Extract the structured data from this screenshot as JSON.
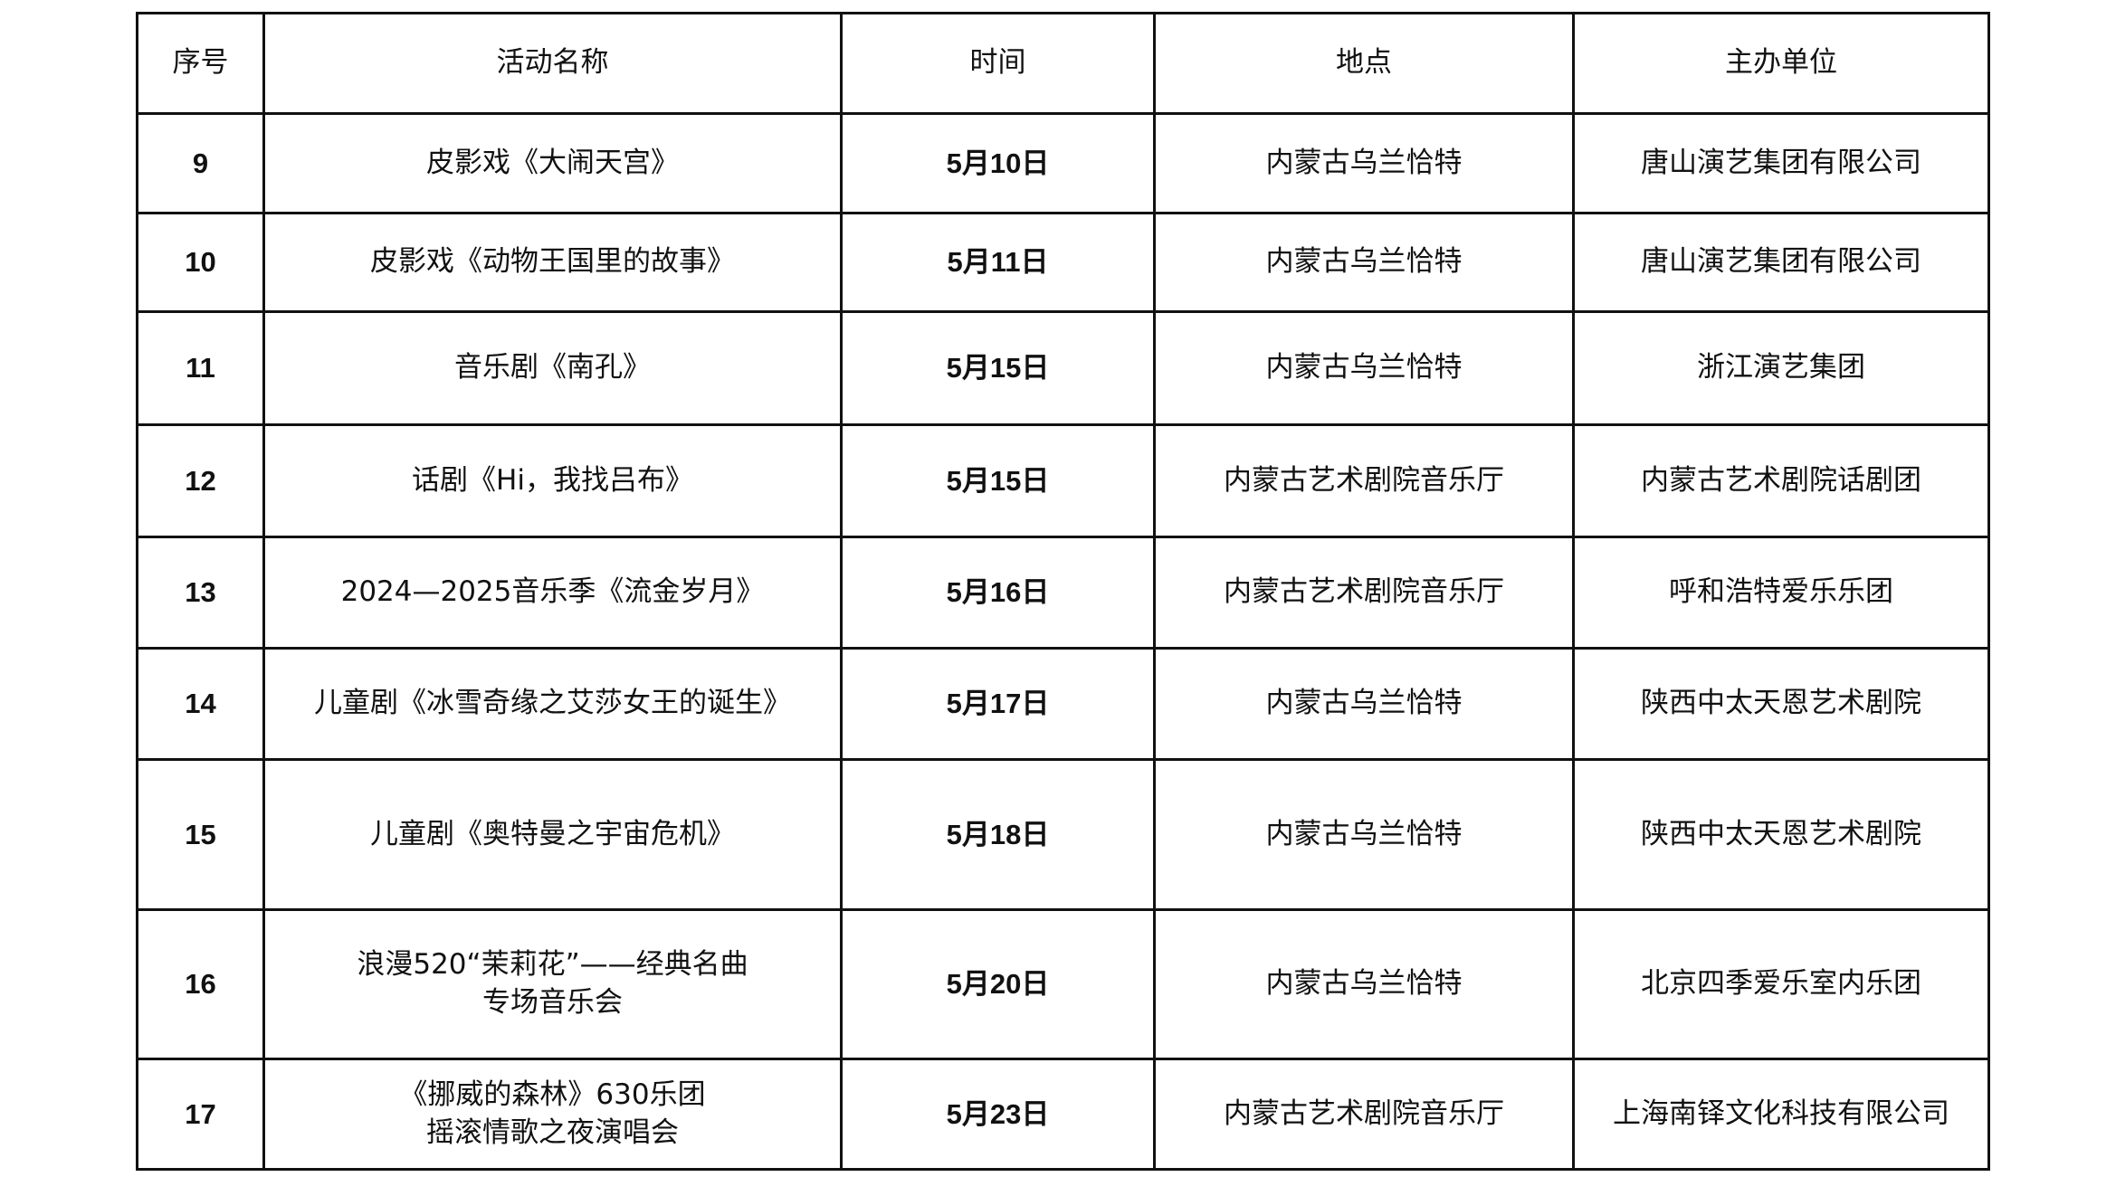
{
  "table": {
    "headers": [
      "序号",
      "活动名称",
      "时间",
      "地点",
      "主办单位"
    ],
    "rows": [
      {
        "no": "9",
        "name": "皮影戏《大闹天宫》",
        "name2": "",
        "date": "5月10日",
        "place": "内蒙古乌兰恰特",
        "org": "唐山演艺集团有限公司"
      },
      {
        "no": "10",
        "name": "皮影戏《动物王国里的故事》",
        "name2": "",
        "date": "5月11日",
        "place": "内蒙古乌兰恰特",
        "org": "唐山演艺集团有限公司"
      },
      {
        "no": "11",
        "name": "音乐剧《南孔》",
        "name2": "",
        "date": "5月15日",
        "place": "内蒙古乌兰恰特",
        "org": "浙江演艺集团"
      },
      {
        "no": "12",
        "name": "话剧《Hi，我找吕布》",
        "name2": "",
        "date": "5月15日",
        "place": "内蒙古艺术剧院音乐厅",
        "org": "内蒙古艺术剧院话剧团"
      },
      {
        "no": "13",
        "name": "2024—2025音乐季《流金岁月》",
        "name2": "",
        "date": "5月16日",
        "place": "内蒙古艺术剧院音乐厅",
        "org": "呼和浩特爱乐乐团"
      },
      {
        "no": "14",
        "name": "儿童剧《冰雪奇缘之艾莎女王的诞生》",
        "name2": "",
        "date": "5月17日",
        "place": "内蒙古乌兰恰特",
        "org": "陕西中太天恩艺术剧院"
      },
      {
        "no": "15",
        "name": "儿童剧《奥特曼之宇宙危机》",
        "name2": "",
        "date": "5月18日",
        "place": "内蒙古乌兰恰特",
        "org": "陕西中太天恩艺术剧院"
      },
      {
        "no": "16",
        "name": "浪漫520“茉莉花”——经典名曲",
        "name2": "专场音乐会",
        "date": "5月20日",
        "place": "内蒙古乌兰恰特",
        "org": "北京四季爱乐室内乐团"
      },
      {
        "no": "17",
        "name": "《挪威的森林》630乐团",
        "name2": "摇滚情歌之夜演唱会",
        "date": "5月23日",
        "place": "内蒙古艺术剧院音乐厅",
        "org": "上海南铎文化科技有限公司"
      }
    ]
  }
}
